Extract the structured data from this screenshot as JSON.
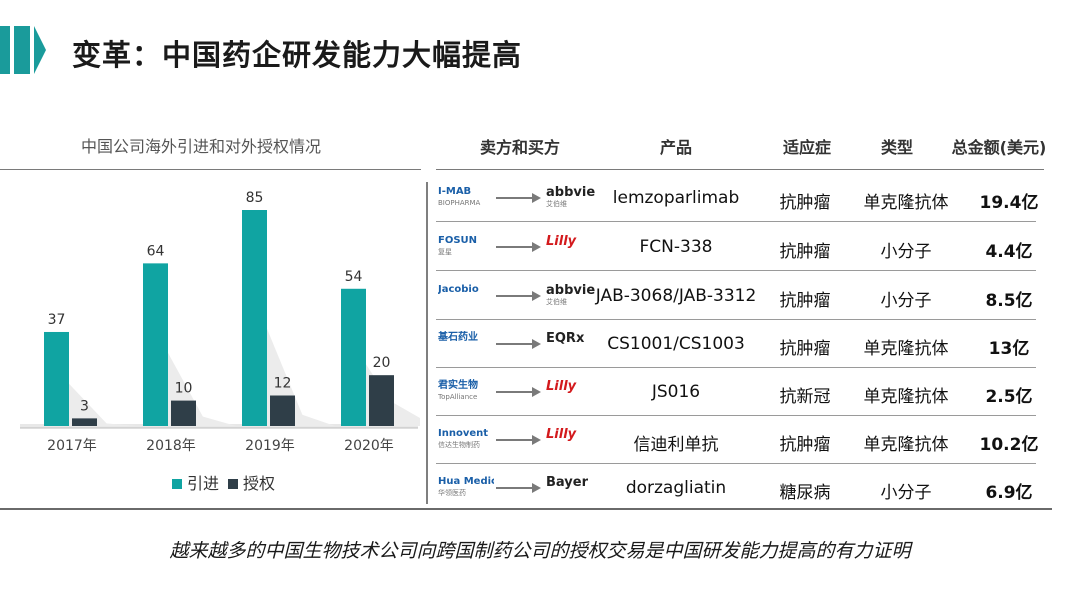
{
  "header": {
    "title": "变革：中国药企研发能力大幅提高"
  },
  "colors": {
    "accent": "#1a9b9b",
    "inbound": "#10a4a2",
    "outbound": "#2f3e48"
  },
  "chart_data": {
    "type": "bar",
    "title": "中国公司海外引进和对外授权情况",
    "categories": [
      "2017年",
      "2018年",
      "2019年",
      "2020年"
    ],
    "series": [
      {
        "name": "引进",
        "values": [
          37,
          64,
          85,
          54
        ]
      },
      {
        "name": "授权",
        "values": [
          3,
          10,
          12,
          20
        ]
      }
    ],
    "ylim": [
      0,
      85
    ],
    "legend": "bottom",
    "grid": false
  },
  "table": {
    "headers": [
      "卖方和买方",
      "产品",
      "适应症",
      "类型",
      "总金额(美元)"
    ],
    "rows": [
      {
        "seller": "I-MAB",
        "seller_sub": "BIOPHARMA",
        "buyer": "abbvie",
        "buyer_sub": "艾伯维",
        "product": "lemzoparlimab",
        "indication": "抗肿瘤",
        "type": "单克隆抗体",
        "amount": "19.4亿"
      },
      {
        "seller": "FOSUN",
        "seller_sub": "复星",
        "buyer": "Lilly",
        "buyer_sub": "",
        "product": "FCN-338",
        "indication": "抗肿瘤",
        "type": "小分子",
        "amount": "4.4亿"
      },
      {
        "seller": "Jacobio",
        "seller_sub": "",
        "buyer": "abbvie",
        "buyer_sub": "艾伯维",
        "product": "JAB-3068/JAB-3312",
        "indication": "抗肿瘤",
        "type": "小分子",
        "amount": "8.5亿"
      },
      {
        "seller": "基石药业",
        "seller_sub": "",
        "buyer": "EQRx",
        "buyer_sub": "",
        "product": "CS1001/CS1003",
        "indication": "抗肿瘤",
        "type": "单克隆抗体",
        "amount": "13亿"
      },
      {
        "seller": "君实生物",
        "seller_sub": "TopAlliance",
        "buyer": "Lilly",
        "buyer_sub": "",
        "product": "JS016",
        "indication": "抗新冠",
        "type": "单克隆抗体",
        "amount": "2.5亿"
      },
      {
        "seller": "Innovent",
        "seller_sub": "信达生物制药",
        "buyer": "Lilly",
        "buyer_sub": "",
        "product": "信迪利单抗",
        "indication": "抗肿瘤",
        "type": "单克隆抗体",
        "amount": "10.2亿"
      },
      {
        "seller": "Hua Medicine",
        "seller_sub": "华领医药",
        "buyer": "Bayer",
        "buyer_sub": "",
        "product": "dorzagliatin",
        "indication": "糖尿病",
        "type": "小分子",
        "amount": "6.9亿"
      }
    ]
  },
  "footer": {
    "text": "越来越多的中国生物技术公司向跨国制药公司的授权交易是中国研发能力提高的有力证明"
  }
}
